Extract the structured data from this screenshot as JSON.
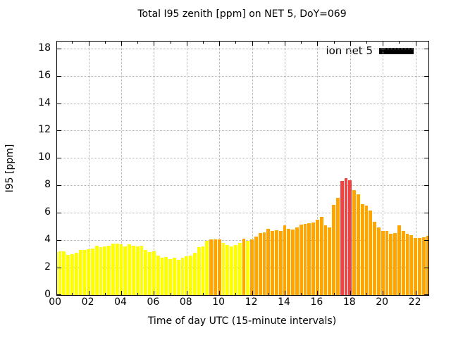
{
  "title": "Total I95 zenith [ppm] on NET 5, DoY=069",
  "legend": {
    "label": "ion net 5",
    "swatch_color": "#000000"
  },
  "axes": {
    "x": {
      "label": "Time of day UTC (15-minute intervals)",
      "tick_labels": [
        "00",
        "02",
        "04",
        "06",
        "08",
        "10",
        "12",
        "14",
        "16",
        "18",
        "20",
        "22"
      ],
      "tick_hours": [
        0,
        2,
        4,
        6,
        8,
        10,
        12,
        14,
        16,
        18,
        20,
        22
      ],
      "minor_tick_hours": [
        1,
        3,
        5,
        7,
        9,
        11,
        13,
        15,
        17,
        19,
        21,
        23
      ]
    },
    "y": {
      "label": "I95 [ppm]",
      "ticks": [
        0,
        2,
        4,
        6,
        8,
        10,
        12,
        14,
        16,
        18
      ]
    }
  },
  "colors": {
    "yellow": "#ffff00",
    "orange": "#ffa500",
    "red": "#ee4444",
    "grid": "#b3b3b3",
    "frame": "#000000",
    "background": "#ffffff"
  },
  "chart_data": {
    "type": "bar",
    "title": "Total I95 zenith [ppm] on NET 5, DoY=069",
    "xlabel": "Time of day UTC (15-minute intervals)",
    "ylabel": "I95 [ppm]",
    "ylim": [
      0,
      18.5
    ],
    "grid": true,
    "legend_position": "top-right",
    "legend_entries": [
      "ion net 5"
    ],
    "interval_minutes": 15,
    "color_rules": [
      {
        "min": 8,
        "color": "#ee4444"
      },
      {
        "min": 4,
        "color": "#ffa500"
      },
      {
        "min": 0,
        "color": "#ffff00"
      }
    ],
    "x": [
      "00:00",
      "00:15",
      "00:30",
      "00:45",
      "01:00",
      "01:15",
      "01:30",
      "01:45",
      "02:00",
      "02:15",
      "02:30",
      "02:45",
      "03:00",
      "03:15",
      "03:30",
      "03:45",
      "04:00",
      "04:15",
      "04:30",
      "04:45",
      "05:00",
      "05:15",
      "05:30",
      "05:45",
      "06:00",
      "06:15",
      "06:30",
      "06:45",
      "07:00",
      "07:15",
      "07:30",
      "07:45",
      "08:00",
      "08:15",
      "08:30",
      "08:45",
      "09:00",
      "09:15",
      "09:30",
      "09:45",
      "10:00",
      "10:15",
      "10:30",
      "10:45",
      "11:00",
      "11:15",
      "11:30",
      "11:45",
      "12:00",
      "12:15",
      "12:30",
      "12:45",
      "13:00",
      "13:15",
      "13:30",
      "13:45",
      "14:00",
      "14:15",
      "14:30",
      "14:45",
      "15:00",
      "15:15",
      "15:30",
      "15:45",
      "16:00",
      "16:15",
      "16:30",
      "16:45",
      "17:00",
      "17:15",
      "17:30",
      "17:45",
      "18:00",
      "18:15",
      "18:30",
      "18:45",
      "19:00",
      "19:15",
      "19:30",
      "19:45",
      "20:00",
      "20:15",
      "20:30",
      "20:45",
      "21:00",
      "21:15",
      "21:30",
      "21:45",
      "22:00",
      "22:15",
      "22:30",
      "22:45"
    ],
    "values": [
      3.15,
      3.2,
      3.2,
      2.95,
      3.0,
      3.1,
      3.3,
      3.3,
      3.35,
      3.4,
      3.6,
      3.5,
      3.55,
      3.6,
      3.75,
      3.75,
      3.7,
      3.55,
      3.7,
      3.6,
      3.55,
      3.6,
      3.3,
      3.15,
      3.2,
      2.9,
      2.75,
      2.8,
      2.6,
      2.75,
      2.55,
      2.75,
      2.85,
      2.9,
      3.1,
      3.5,
      3.55,
      3.95,
      4.05,
      4.05,
      4.05,
      3.8,
      3.65,
      3.55,
      3.65,
      3.8,
      4.1,
      3.95,
      4.05,
      4.25,
      4.5,
      4.6,
      4.85,
      4.7,
      4.75,
      4.7,
      5.1,
      4.85,
      4.8,
      4.95,
      5.15,
      5.2,
      5.25,
      5.3,
      5.5,
      5.7,
      5.1,
      4.95,
      6.6,
      7.1,
      8.35,
      8.55,
      8.4,
      7.65,
      7.35,
      6.65,
      6.55,
      6.15,
      5.35,
      4.95,
      4.7,
      4.7,
      4.45,
      4.5,
      5.1,
      4.7,
      4.45,
      4.35,
      4.15,
      4.15,
      4.2,
      4.3
    ]
  }
}
